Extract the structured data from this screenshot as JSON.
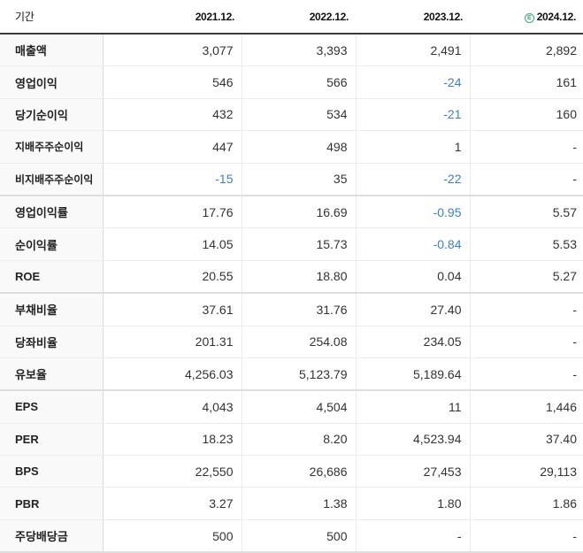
{
  "header": {
    "period_label": "기간",
    "columns": [
      {
        "label": "2021.12.",
        "estimate": false
      },
      {
        "label": "2022.12.",
        "estimate": false
      },
      {
        "label": "2023.12.",
        "estimate": false
      },
      {
        "label": "2024.12.",
        "estimate": true,
        "estimate_icon": "E"
      }
    ]
  },
  "colors": {
    "negative": "#3a7fd3",
    "estimate_badge": "#2fb36a",
    "header_border": "#3a3a3a",
    "label_bg": "#f9f9f9"
  },
  "rows": [
    {
      "label": "매출액",
      "values": [
        "3,077",
        "3,393",
        "2,491",
        "2,892"
      ]
    },
    {
      "label": "영업이익",
      "values": [
        "546",
        "566",
        "-24",
        "161"
      ]
    },
    {
      "label": "당기순이익",
      "values": [
        "432",
        "534",
        "-21",
        "160"
      ]
    },
    {
      "label": "지배주주순이익",
      "values": [
        "447",
        "498",
        "1",
        "-"
      ]
    },
    {
      "label": "비지배주주순이익",
      "values": [
        "-15",
        "35",
        "-22",
        "-"
      ]
    },
    {
      "label": "영업이익률",
      "values": [
        "17.76",
        "16.69",
        "-0.95",
        "5.57"
      ]
    },
    {
      "label": "순이익률",
      "values": [
        "14.05",
        "15.73",
        "-0.84",
        "5.53"
      ]
    },
    {
      "label": "ROE",
      "values": [
        "20.55",
        "18.80",
        "0.04",
        "5.27"
      ]
    },
    {
      "label": "부채비율",
      "values": [
        "37.61",
        "31.76",
        "27.40",
        "-"
      ]
    },
    {
      "label": "당좌비율",
      "values": [
        "201.31",
        "254.08",
        "234.05",
        "-"
      ]
    },
    {
      "label": "유보율",
      "values": [
        "4,256.03",
        "5,123.79",
        "5,189.64",
        "-"
      ]
    },
    {
      "label": "EPS",
      "values": [
        "4,043",
        "4,504",
        "11",
        "1,446"
      ]
    },
    {
      "label": "PER",
      "values": [
        "18.23",
        "8.20",
        "4,523.94",
        "37.40"
      ]
    },
    {
      "label": "BPS",
      "values": [
        "22,550",
        "26,686",
        "27,453",
        "29,113"
      ]
    },
    {
      "label": "PBR",
      "values": [
        "3.27",
        "1.38",
        "1.80",
        "1.86"
      ]
    },
    {
      "label": "주당배당금",
      "values": [
        "500",
        "500",
        "-",
        "-"
      ]
    }
  ]
}
